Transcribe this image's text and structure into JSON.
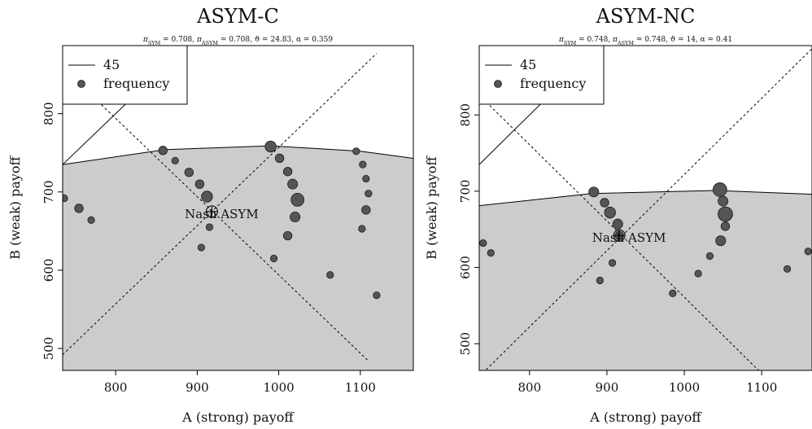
{
  "chart_data": [
    {
      "type": "scatter",
      "title": "ASYM-C",
      "subtitle": "π_SYM = 0.708, π_ASYM = 0.708, ϑ = 24.83, α = 0.359",
      "xlabel": "A (strong) payoff",
      "ylabel": "B (weak) payoff",
      "xlim": [
        735,
        1165
      ],
      "ylim": [
        472,
        887
      ],
      "xticks": [
        800,
        900,
        1000,
        1100
      ],
      "yticks": [
        500,
        600,
        700,
        800
      ],
      "legend": {
        "placement": "top-left",
        "entries": [
          {
            "label": "45",
            "symbol": "line"
          },
          {
            "label": "frequency",
            "symbol": "point"
          }
        ]
      },
      "frontier": {
        "x": [
          735,
          860,
          990,
          1100,
          1165
        ],
        "y": [
          735,
          754,
          759,
          752,
          743
        ]
      },
      "line_45": {
        "x": [
          735,
          850
        ],
        "y": [
          735,
          850
        ]
      },
      "dashed_lines": [
        {
          "x": [
            735,
            1120
          ],
          "y": [
            492,
            877
          ]
        },
        {
          "x": [
            735,
            1110
          ],
          "y": [
            859,
            484
          ]
        }
      ],
      "nash": {
        "label": "Nash ASYM",
        "x": 918,
        "y": 675
      },
      "points": [
        {
          "x": 737,
          "y": 692,
          "freq": 1
        },
        {
          "x": 755,
          "y": 679,
          "freq": 2
        },
        {
          "x": 770,
          "y": 664,
          "freq": 1
        },
        {
          "x": 858,
          "y": 753,
          "freq": 2
        },
        {
          "x": 873,
          "y": 740,
          "freq": 1
        },
        {
          "x": 890,
          "y": 725,
          "freq": 2
        },
        {
          "x": 903,
          "y": 710,
          "freq": 2
        },
        {
          "x": 912,
          "y": 694,
          "freq": 4
        },
        {
          "x": 915,
          "y": 655,
          "freq": 1
        },
        {
          "x": 905,
          "y": 629,
          "freq": 1
        },
        {
          "x": 990,
          "y": 758,
          "freq": 4
        },
        {
          "x": 1001,
          "y": 743,
          "freq": 2
        },
        {
          "x": 1011,
          "y": 726,
          "freq": 2
        },
        {
          "x": 1017,
          "y": 710,
          "freq": 3
        },
        {
          "x": 1023,
          "y": 690,
          "freq": 6
        },
        {
          "x": 1020,
          "y": 668,
          "freq": 3
        },
        {
          "x": 1011,
          "y": 644,
          "freq": 2
        },
        {
          "x": 994,
          "y": 615,
          "freq": 1
        },
        {
          "x": 1063,
          "y": 594,
          "freq": 1
        },
        {
          "x": 1095,
          "y": 752,
          "freq": 1
        },
        {
          "x": 1103,
          "y": 735,
          "freq": 1
        },
        {
          "x": 1107,
          "y": 717,
          "freq": 1
        },
        {
          "x": 1110,
          "y": 698,
          "freq": 1
        },
        {
          "x": 1107,
          "y": 677,
          "freq": 2
        },
        {
          "x": 1102,
          "y": 653,
          "freq": 1
        },
        {
          "x": 1120,
          "y": 568,
          "freq": 1
        }
      ]
    },
    {
      "type": "scatter",
      "title": "ASYM-NC",
      "subtitle": "π_SYM = 0.748, π_ASYM = 0.748, ϑ = 14, α = 0.41",
      "xlabel": "A (strong) payoff",
      "ylabel": "B (weak) payoff",
      "xlim": [
        735,
        1165
      ],
      "ylim": [
        465,
        891
      ],
      "xticks": [
        800,
        900,
        1000,
        1100
      ],
      "yticks": [
        500,
        600,
        700,
        800
      ],
      "legend": {
        "placement": "top-left",
        "entries": [
          {
            "label": "45",
            "symbol": "line"
          },
          {
            "label": "frequency",
            "symbol": "point"
          }
        ]
      },
      "frontier": {
        "x": [
          735,
          880,
          1040,
          1165
        ],
        "y": [
          681,
          697,
          701,
          696
        ]
      },
      "line_45": {
        "x": [
          735,
          850
        ],
        "y": [
          735,
          850
        ]
      },
      "dashed_lines": [
        {
          "x": [
            735,
            1165
          ],
          "y": [
            457,
            887
          ]
        },
        {
          "x": [
            735,
            1100
          ],
          "y": [
            826,
            461
          ]
        }
      ],
      "nash": {
        "label": "Nash ASYM",
        "x": 916,
        "y": 642
      },
      "points": [
        {
          "x": 740,
          "y": 632,
          "freq": 1
        },
        {
          "x": 750,
          "y": 619,
          "freq": 1
        },
        {
          "x": 883,
          "y": 699,
          "freq": 3
        },
        {
          "x": 897,
          "y": 685,
          "freq": 2
        },
        {
          "x": 904,
          "y": 672,
          "freq": 4
        },
        {
          "x": 914,
          "y": 657,
          "freq": 3
        },
        {
          "x": 916,
          "y": 642,
          "freq": 2
        },
        {
          "x": 907,
          "y": 606,
          "freq": 1
        },
        {
          "x": 891,
          "y": 583,
          "freq": 1
        },
        {
          "x": 985,
          "y": 566,
          "freq": 1
        },
        {
          "x": 1033,
          "y": 615,
          "freq": 1
        },
        {
          "x": 1018,
          "y": 592,
          "freq": 1
        },
        {
          "x": 1046,
          "y": 702,
          "freq": 7
        },
        {
          "x": 1050,
          "y": 687,
          "freq": 3
        },
        {
          "x": 1053,
          "y": 670,
          "freq": 8
        },
        {
          "x": 1053,
          "y": 654,
          "freq": 2
        },
        {
          "x": 1047,
          "y": 635,
          "freq": 3
        },
        {
          "x": 1133,
          "y": 598,
          "freq": 1
        },
        {
          "x": 1160,
          "y": 621,
          "freq": 1
        }
      ]
    }
  ]
}
